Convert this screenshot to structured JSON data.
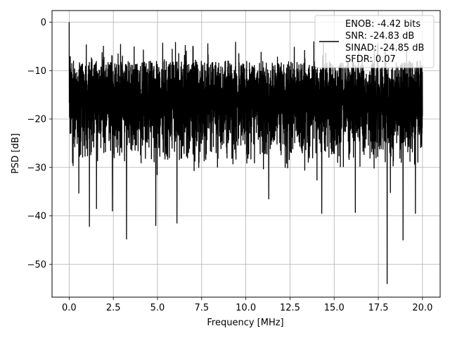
{
  "chart_data": {
    "type": "line",
    "title": "",
    "xlabel": "Frequency [MHz]",
    "ylabel": "PSD [dB]",
    "xlim": [
      -0.97,
      21.0
    ],
    "ylim": [
      -56.8,
      2.4
    ],
    "xticks": [
      0.0,
      2.5,
      5.0,
      7.5,
      10.0,
      12.5,
      15.0,
      17.5,
      20.0
    ],
    "xtick_labels": [
      "0.0",
      "2.5",
      "5.0",
      "7.5",
      "10.0",
      "12.5",
      "15.0",
      "17.5",
      "20.0"
    ],
    "yticks": [
      0,
      -10,
      -20,
      -30,
      -40,
      -50
    ],
    "ytick_labels": [
      "0",
      "−10",
      "−20",
      "−30",
      "−40",
      "−50"
    ],
    "grid": true,
    "legend_position": "top-right",
    "legend_lines": [
      "ENOB: -4.42 bits",
      "SNR: -24.83 dB",
      "SINAD: -24.85 dB",
      "SFDR: 0.07"
    ],
    "series": [
      {
        "color": "#000000",
        "x_range": [
          0.0,
          20.0
        ],
        "spectrum": {
          "noise_floor_db": -16,
          "upper_envelope_db": -8,
          "lower_envelope_db": -31,
          "peak_db": 0,
          "peak_x": 0.0
        },
        "notable_dips": [
          {
            "x": 0.55,
            "y": -35.3
          },
          {
            "x": 1.15,
            "y": -42.2
          },
          {
            "x": 1.55,
            "y": -38.5
          },
          {
            "x": 2.45,
            "y": -39.0
          },
          {
            "x": 3.25,
            "y": -44.8
          },
          {
            "x": 4.9,
            "y": -42.0
          },
          {
            "x": 6.1,
            "y": -41.5
          },
          {
            "x": 11.3,
            "y": -36.5
          },
          {
            "x": 14.3,
            "y": -39.5
          },
          {
            "x": 16.2,
            "y": -39.3
          },
          {
            "x": 18.0,
            "y": -54.0
          },
          {
            "x": 18.9,
            "y": -45.0
          },
          {
            "x": 19.6,
            "y": -39.5
          }
        ]
      }
    ]
  }
}
